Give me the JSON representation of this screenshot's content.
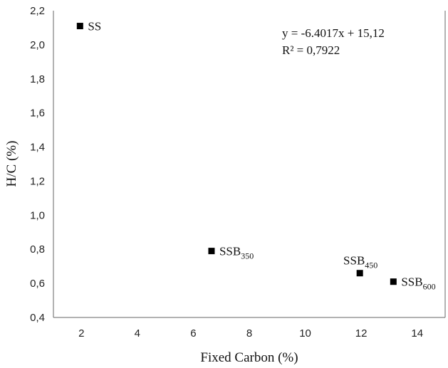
{
  "chart_data": {
    "type": "scatter",
    "xlabel": "Fixed Carbon (%)",
    "ylabel": "H/C (%)",
    "xlim": [
      1,
      15
    ],
    "ylim": [
      0.4,
      2.2
    ],
    "xticks": [
      2,
      4,
      6,
      8,
      10,
      12,
      14
    ],
    "yticks": [
      0.4,
      0.6,
      0.8,
      1.0,
      1.2,
      1.4,
      1.6,
      1.8,
      2.0,
      2.2
    ],
    "x_tick_labels": [
      "2",
      "4",
      "6",
      "8",
      "10",
      "12",
      "14"
    ],
    "y_tick_labels": [
      "0,4",
      "0,6",
      "0,8",
      "1,0",
      "1,2",
      "1,4",
      "1,6",
      "1,8",
      "2,0",
      "2,2"
    ],
    "grid": false,
    "marker": "square",
    "marker_color": "#000000",
    "points": [
      {
        "x": 1.95,
        "y": 2.11,
        "label": "SS",
        "label_main": "SS",
        "label_sub": "",
        "label_pos": "right"
      },
      {
        "x": 6.65,
        "y": 0.79,
        "label": "SSB350",
        "label_main": "SSB",
        "label_sub": "350",
        "label_pos": "right"
      },
      {
        "x": 11.95,
        "y": 0.66,
        "label": "SSB450",
        "label_main": "SSB",
        "label_sub": "450",
        "label_pos": "above"
      },
      {
        "x": 13.15,
        "y": 0.61,
        "label": "SSB600",
        "label_main": "SSB",
        "label_sub": "600",
        "label_pos": "right"
      }
    ],
    "annotations": [
      "y = -6.4017x + 15,12",
      "R² = 0,7922"
    ]
  }
}
